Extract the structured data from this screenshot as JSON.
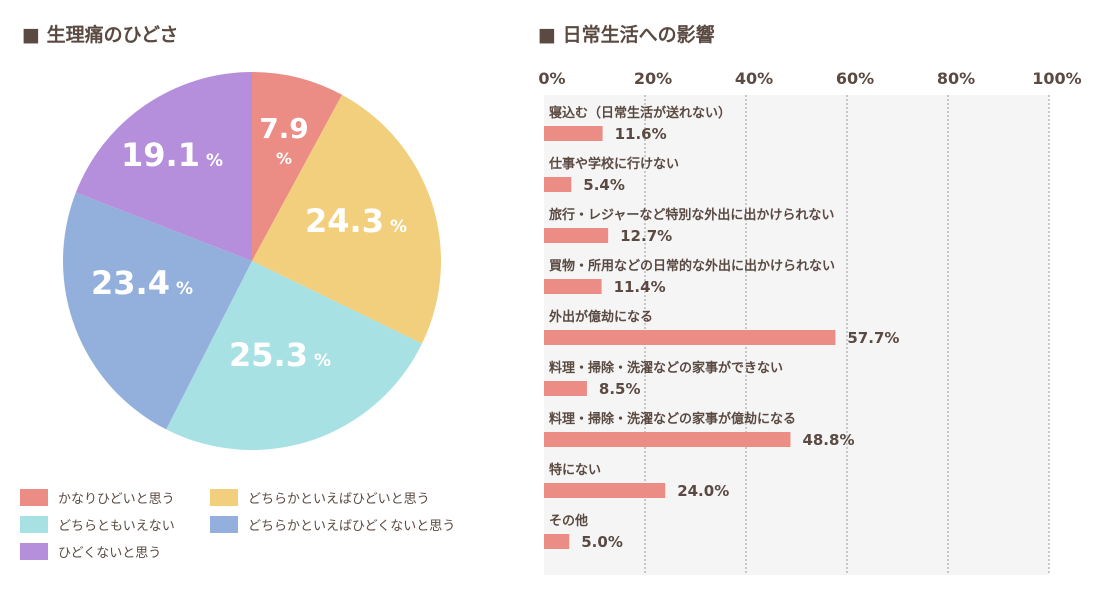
{
  "colors": {
    "pink": "#eb8c85",
    "yellow": "#f2cf7c",
    "cyan": "#a8e1e4",
    "blue": "#93b0dc",
    "purple": "#b68fdc",
    "bar": "#eb8c85",
    "panel": "#f5f5f5",
    "text": "#5a4a42"
  },
  "chart_data": [
    {
      "type": "pie",
      "title": "■ 生理痛のひどさ",
      "slices": [
        {
          "label": "かなりひどいと思う",
          "value": 7.9,
          "color": "#eb8c85",
          "value_text": "7.9",
          "unit": "%"
        },
        {
          "label": "どちらかといえばひどいと思う",
          "value": 24.3,
          "color": "#f2cf7c",
          "value_text": "24.3",
          "unit": "%"
        },
        {
          "label": "どちらともいえない",
          "value": 25.3,
          "color": "#a8e1e4",
          "value_text": "25.3",
          "unit": "%"
        },
        {
          "label": "どちらかといえばひどくないと思う",
          "value": 23.4,
          "color": "#93b0dc",
          "value_text": "23.4",
          "unit": "%"
        },
        {
          "label": "ひどくないと思う",
          "value": 19.1,
          "color": "#b68fdc",
          "value_text": "19.1",
          "unit": "%"
        }
      ],
      "legend_placement": "bottom"
    },
    {
      "type": "bar",
      "orientation": "horizontal",
      "title": "■ 日常生活への影響",
      "xlim": [
        0,
        100
      ],
      "ticks": [
        "0%",
        "20%",
        "40%",
        "60%",
        "80%",
        "100%"
      ],
      "grid": true,
      "categories": [
        "寝込む（日常生活が送れない）",
        "仕事や学校に行けない",
        "旅行・レジャーなど特別な外出に出かけられない",
        "買物・所用などの日常的な外出に出かけられない",
        "外出が億劫になる",
        "料理・掃除・洗濯などの家事ができない",
        "料理・掃除・洗濯などの家事が億劫になる",
        "特にない",
        "その他"
      ],
      "values": [
        11.6,
        5.4,
        12.7,
        11.4,
        57.7,
        8.5,
        48.8,
        24.0,
        5.0
      ],
      "value_labels": [
        "11.6%",
        "5.4%",
        "12.7%",
        "11.4%",
        "57.7%",
        "8.5%",
        "48.8%",
        "24.0%",
        "5.0%"
      ]
    }
  ]
}
